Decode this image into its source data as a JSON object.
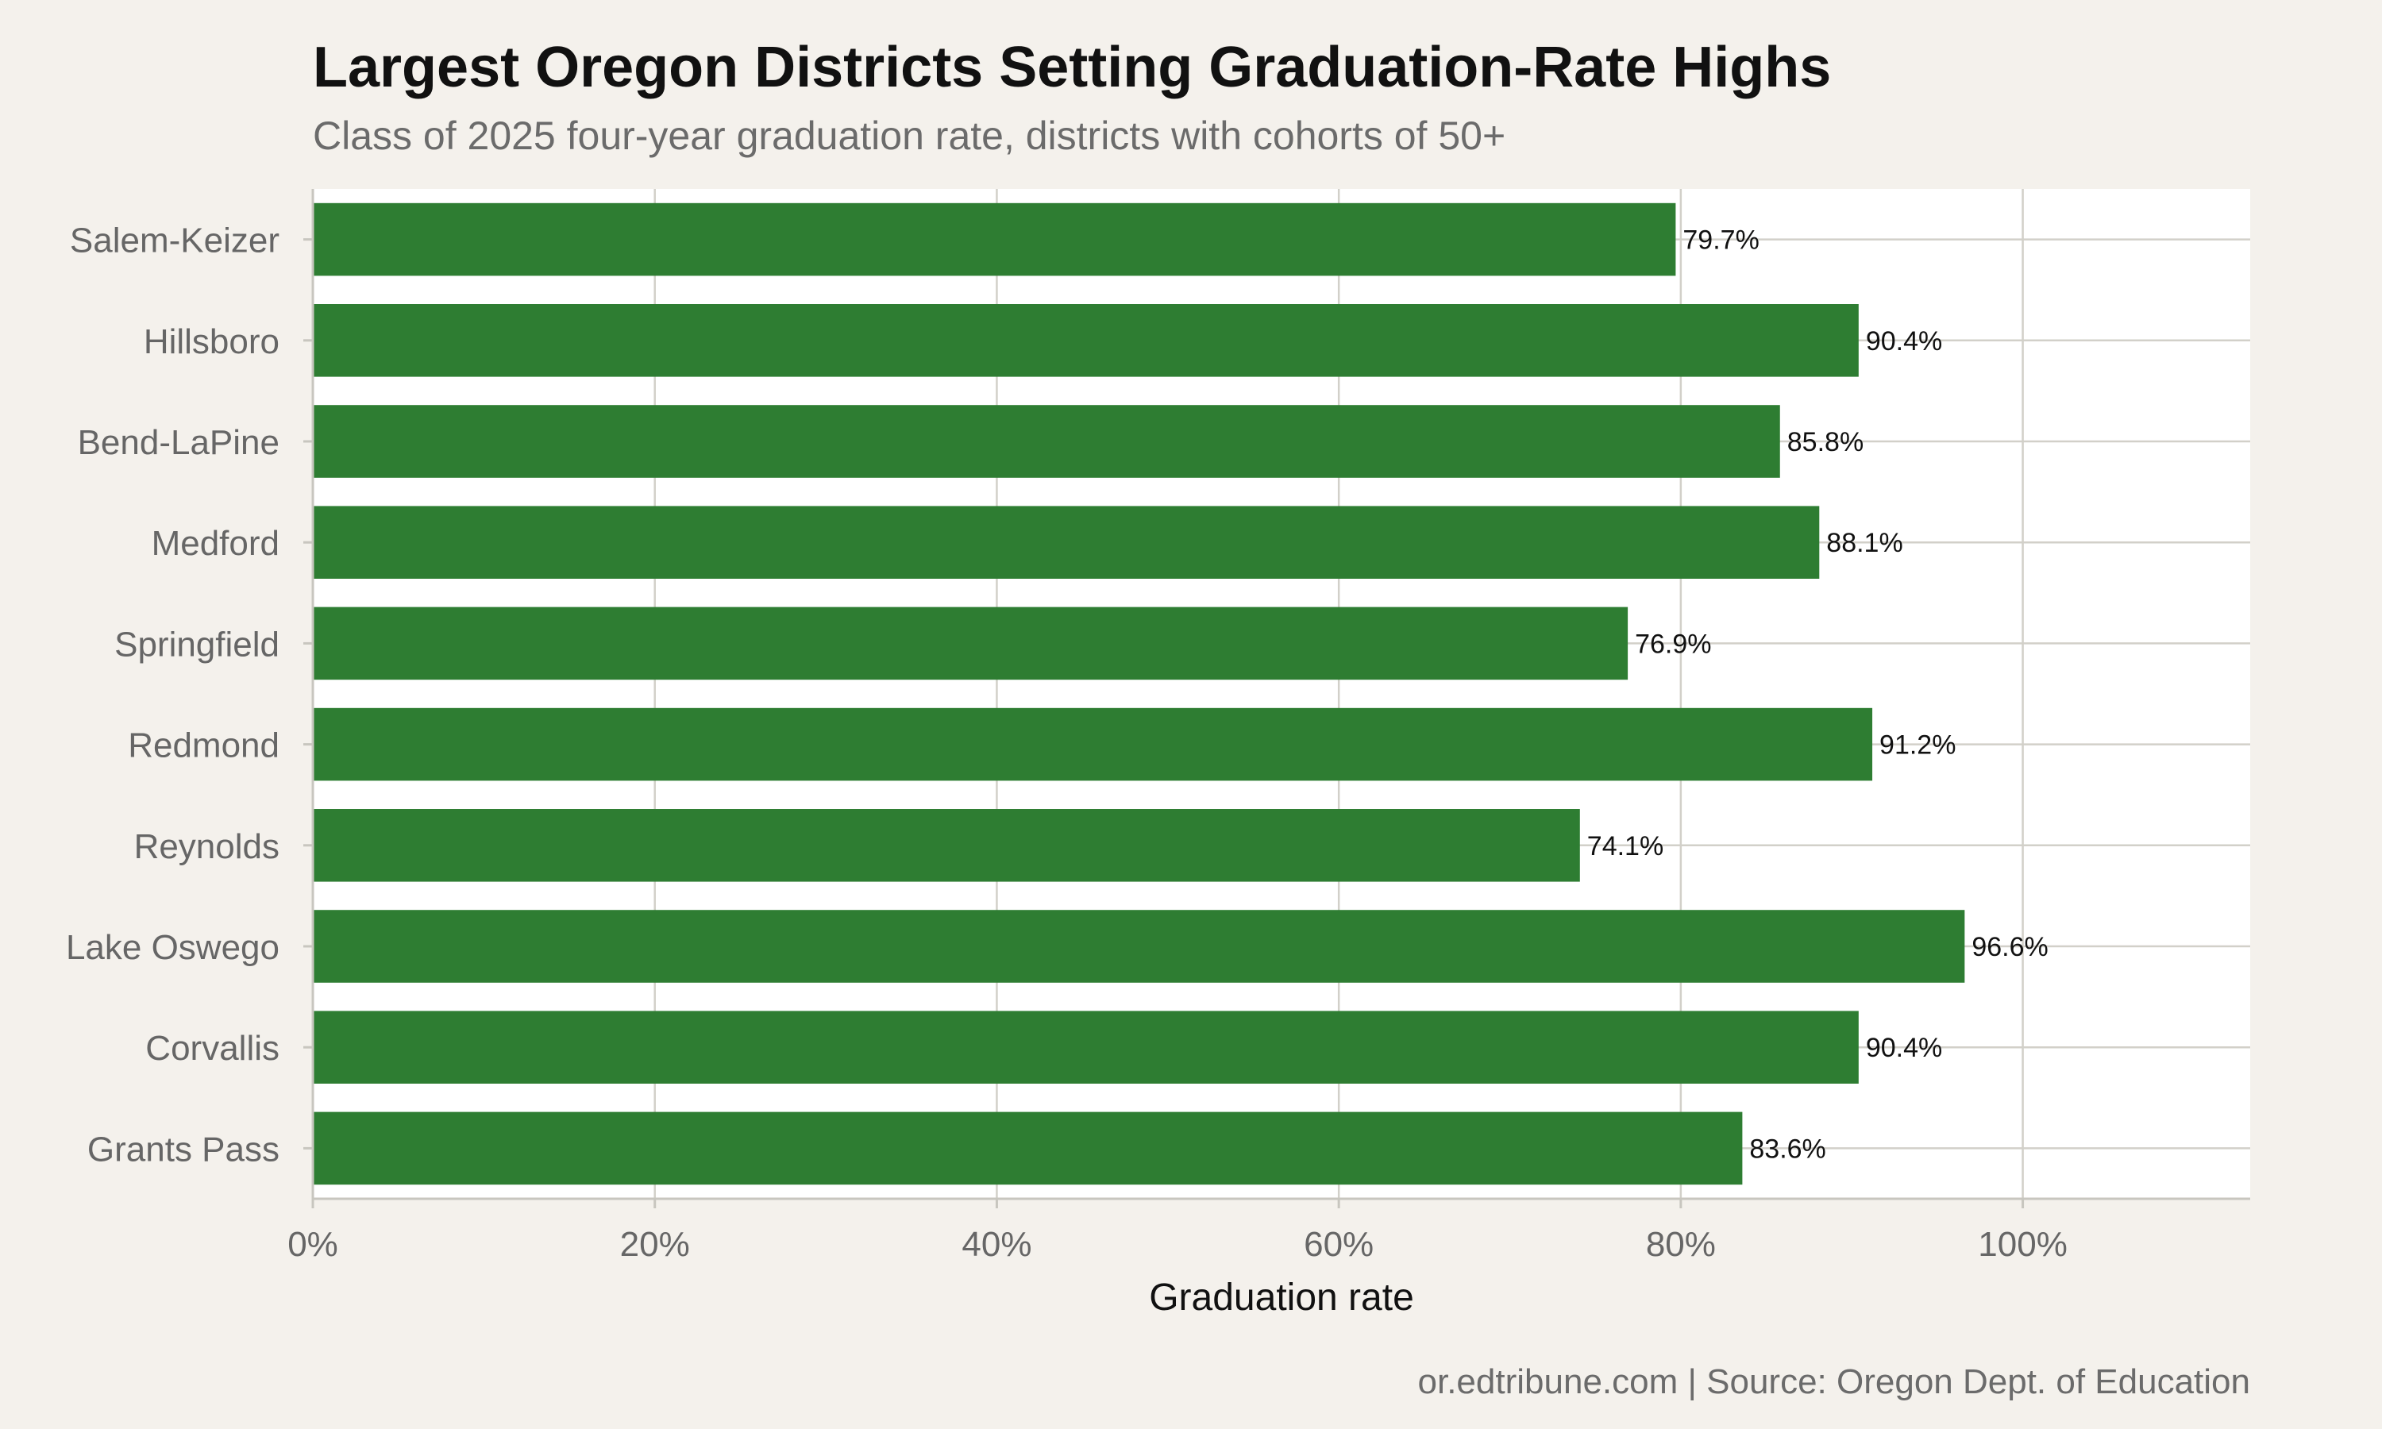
{
  "chart_data": {
    "type": "bar",
    "orientation": "horizontal",
    "title": "Largest Oregon Districts Setting Graduation-Rate Highs",
    "subtitle": "Class of 2025 four-year graduation rate, districts with cohorts of 50+",
    "xlabel": "Graduation rate",
    "ylabel": "",
    "categories": [
      "Salem-Keizer",
      "Hillsboro",
      "Bend-LaPine",
      "Medford",
      "Springfield",
      "Redmond",
      "Reynolds",
      "Lake Oswego",
      "Corvallis",
      "Grants Pass"
    ],
    "values": [
      79.7,
      90.4,
      85.8,
      88.1,
      76.9,
      91.2,
      74.1,
      96.6,
      90.4,
      83.6
    ],
    "value_labels": [
      "79.7%",
      "90.4%",
      "85.8%",
      "88.1%",
      "76.9%",
      "91.2%",
      "74.1%",
      "96.6%",
      "90.4%",
      "83.6%"
    ],
    "xlim": [
      0,
      113.3
    ],
    "x_ticks": [
      0,
      20,
      40,
      60,
      80,
      100
    ],
    "x_tick_labels": [
      "0%",
      "20%",
      "40%",
      "60%",
      "80%",
      "100%"
    ],
    "grid": true,
    "bar_color": "#2e7d32",
    "source": "or.edtribune.com | Source: Oregon Dept. of Education"
  }
}
